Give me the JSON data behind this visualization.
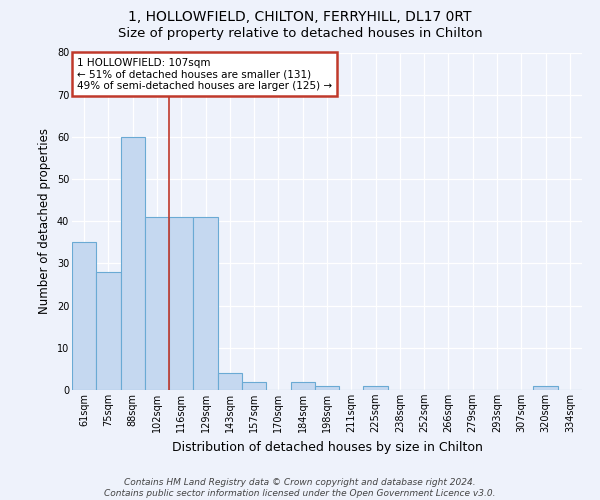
{
  "title1": "1, HOLLOWFIELD, CHILTON, FERRYHILL, DL17 0RT",
  "title2": "Size of property relative to detached houses in Chilton",
  "xlabel": "Distribution of detached houses by size in Chilton",
  "ylabel": "Number of detached properties",
  "categories": [
    "61sqm",
    "75sqm",
    "88sqm",
    "102sqm",
    "116sqm",
    "129sqm",
    "143sqm",
    "157sqm",
    "170sqm",
    "184sqm",
    "198sqm",
    "211sqm",
    "225sqm",
    "238sqm",
    "252sqm",
    "266sqm",
    "279sqm",
    "293sqm",
    "307sqm",
    "320sqm",
    "334sqm"
  ],
  "values": [
    35,
    28,
    60,
    41,
    41,
    41,
    4,
    2,
    0,
    2,
    1,
    0,
    1,
    0,
    0,
    0,
    0,
    0,
    0,
    1,
    0
  ],
  "bar_color": "#c5d8f0",
  "bar_edge_color": "#6aaad4",
  "bar_edge_width": 0.8,
  "vline_x": 3.5,
  "vline_color": "#c0392b",
  "vline_linewidth": 1.2,
  "ylim": [
    0,
    80
  ],
  "yticks": [
    0,
    10,
    20,
    30,
    40,
    50,
    60,
    70,
    80
  ],
  "annotation_text": "1 HOLLOWFIELD: 107sqm\n← 51% of detached houses are smaller (131)\n49% of semi-detached houses are larger (125) →",
  "annotation_box_color": "white",
  "annotation_box_edge_color": "#c0392b",
  "bg_color": "#eef2fb",
  "grid_color": "white",
  "footer_text": "Contains HM Land Registry data © Crown copyright and database right 2024.\nContains public sector information licensed under the Open Government Licence v3.0.",
  "title1_fontsize": 10,
  "title2_fontsize": 9.5,
  "xlabel_fontsize": 9,
  "ylabel_fontsize": 8.5,
  "tick_fontsize": 7,
  "annotation_fontsize": 7.5,
  "footer_fontsize": 6.5
}
